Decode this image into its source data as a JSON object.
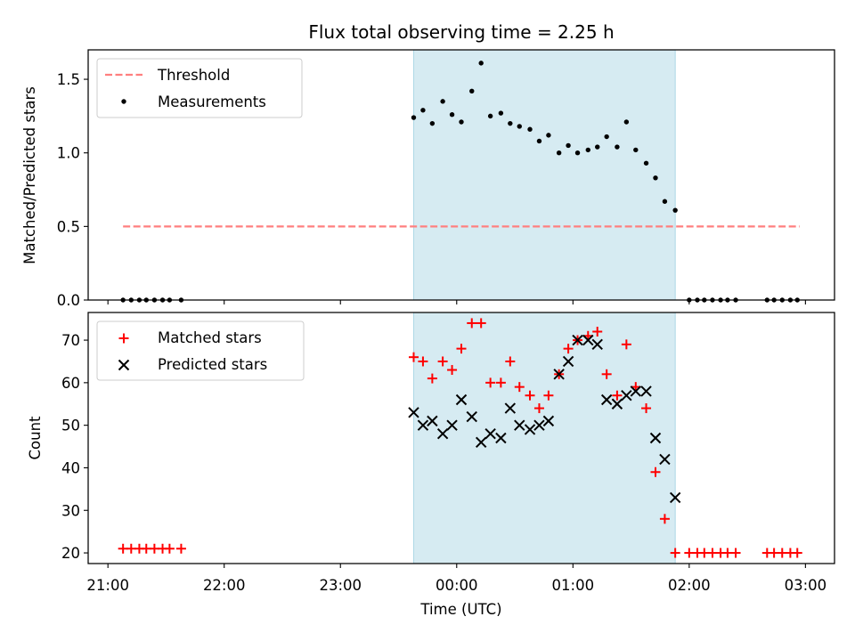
{
  "colors": {
    "shade": "#add8e6",
    "threshold": "#ff7f7f",
    "measurement": "#000000",
    "matched": "#ff0000",
    "predicted": "#000000"
  },
  "chart_data": [
    {
      "type": "scatter",
      "title": "Flux total observing time = 2.25 h",
      "xlabel": "",
      "ylabel": "Matched/Predicted stars",
      "ylim": [
        0,
        1.7
      ],
      "yticks": [
        0.0,
        0.5,
        1.0,
        1.5
      ],
      "ytick_labels": [
        "0.0",
        "0.5",
        "1.0",
        "1.5"
      ],
      "x_unit": "hours after 21:00 UTC",
      "xlim": [
        -0.17,
        6.25
      ],
      "shaded_span": {
        "x_start": 2.63,
        "x_end": 4.88
      },
      "legend": {
        "position": "upper-left",
        "entries": [
          "Threshold",
          "Measurements"
        ]
      },
      "threshold": {
        "name": "Threshold",
        "y": 0.5,
        "x_start": 0.13,
        "x_end": 5.95
      },
      "series": [
        {
          "name": "Measurements",
          "x": [
            0.13,
            0.2,
            0.27,
            0.33,
            0.4,
            0.47,
            0.53,
            0.63,
            2.63,
            2.71,
            2.79,
            2.88,
            2.96,
            3.04,
            3.13,
            3.21,
            3.29,
            3.38,
            3.46,
            3.54,
            3.63,
            3.71,
            3.79,
            3.88,
            3.96,
            4.04,
            4.13,
            4.21,
            4.29,
            4.38,
            4.46,
            4.54,
            4.63,
            4.71,
            4.79,
            4.88,
            5.0,
            5.07,
            5.13,
            5.2,
            5.27,
            5.33,
            5.4,
            5.67,
            5.73,
            5.8,
            5.87,
            5.93
          ],
          "y": [
            0,
            0,
            0,
            0,
            0,
            0,
            0,
            0,
            1.24,
            1.29,
            1.2,
            1.35,
            1.26,
            1.21,
            1.42,
            1.61,
            1.25,
            1.27,
            1.2,
            1.18,
            1.16,
            1.08,
            1.12,
            1.0,
            1.05,
            1.0,
            1.02,
            1.04,
            1.11,
            1.04,
            1.21,
            1.02,
            0.93,
            0.83,
            0.67,
            0.61,
            0,
            0,
            0,
            0,
            0,
            0,
            0,
            0,
            0,
            0,
            0,
            0
          ]
        }
      ]
    },
    {
      "type": "scatter",
      "title": "",
      "xlabel": "Time (UTC)",
      "ylabel": "Count",
      "ylim": [
        17.5,
        76.5
      ],
      "yticks": [
        20,
        30,
        40,
        50,
        60,
        70
      ],
      "ytick_labels": [
        "20",
        "30",
        "40",
        "50",
        "60",
        "70"
      ],
      "x_unit": "hours after 21:00 UTC",
      "xlim": [
        -0.17,
        6.25
      ],
      "xticks": [
        0,
        1,
        2,
        3,
        4,
        5,
        6
      ],
      "xtick_labels": [
        "21:00",
        "22:00",
        "23:00",
        "00:00",
        "01:00",
        "02:00",
        "03:00"
      ],
      "shaded_span": {
        "x_start": 2.63,
        "x_end": 4.88
      },
      "legend": {
        "position": "upper-left",
        "entries": [
          "Matched stars",
          "Predicted stars"
        ]
      },
      "series": [
        {
          "name": "Matched stars",
          "marker": "plus",
          "x": [
            0.13,
            0.2,
            0.27,
            0.33,
            0.4,
            0.47,
            0.53,
            0.63,
            2.63,
            2.71,
            2.79,
            2.88,
            2.96,
            3.04,
            3.13,
            3.21,
            3.29,
            3.38,
            3.46,
            3.54,
            3.63,
            3.71,
            3.79,
            3.88,
            3.96,
            4.04,
            4.13,
            4.21,
            4.29,
            4.38,
            4.46,
            4.54,
            4.63,
            4.71,
            4.79,
            4.88,
            5.0,
            5.07,
            5.13,
            5.2,
            5.27,
            5.33,
            5.4,
            5.67,
            5.73,
            5.8,
            5.87,
            5.93
          ],
          "y": [
            21,
            21,
            21,
            21,
            21,
            21,
            21,
            21,
            66,
            65,
            61,
            65,
            63,
            68,
            74,
            74,
            60,
            60,
            65,
            59,
            57,
            54,
            57,
            62,
            68,
            70,
            71,
            72,
            62,
            57,
            69,
            59,
            54,
            39,
            28,
            20,
            20,
            20,
            20,
            20,
            20,
            20,
            20,
            20,
            20,
            20,
            20,
            20
          ]
        },
        {
          "name": "Predicted stars",
          "marker": "x",
          "x": [
            2.63,
            2.71,
            2.79,
            2.88,
            2.96,
            3.04,
            3.13,
            3.21,
            3.29,
            3.38,
            3.46,
            3.54,
            3.63,
            3.71,
            3.79,
            3.88,
            3.96,
            4.04,
            4.13,
            4.21,
            4.29,
            4.38,
            4.46,
            4.54,
            4.63,
            4.71,
            4.79,
            4.88
          ],
          "y": [
            53,
            50,
            51,
            48,
            50,
            56,
            52,
            46,
            48,
            47,
            54,
            50,
            49,
            50,
            51,
            62,
            65,
            70,
            70,
            69,
            56,
            55,
            57,
            58,
            58,
            47,
            42,
            33
          ]
        }
      ]
    }
  ]
}
